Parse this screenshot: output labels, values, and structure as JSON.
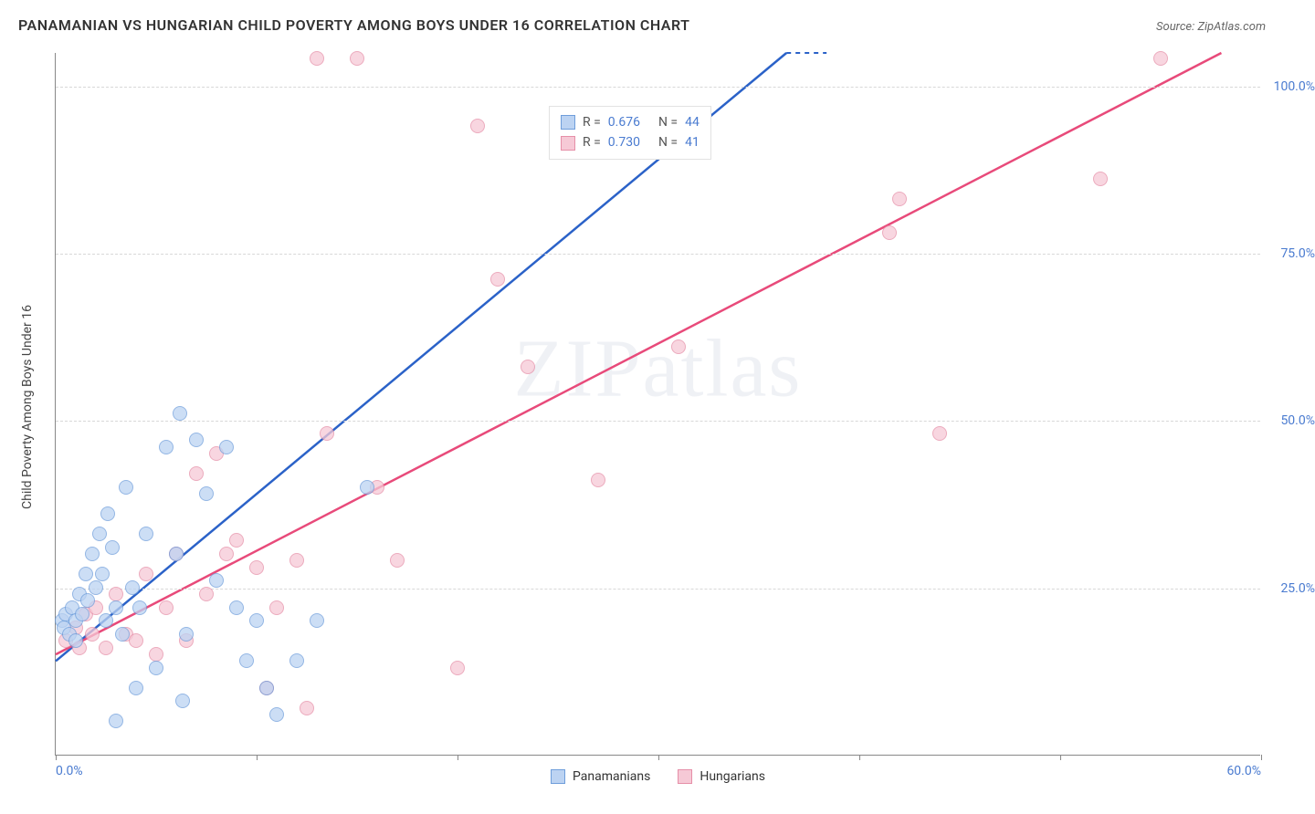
{
  "header": {
    "title": "PANAMANIAN VS HUNGARIAN CHILD POVERTY AMONG BOYS UNDER 16 CORRELATION CHART",
    "source_label": "Source: ",
    "source_name": "ZipAtlas.com"
  },
  "watermark": "ZIPatlas",
  "ylabel": "Child Poverty Among Boys Under 16",
  "chart": {
    "type": "scatter",
    "xlim": [
      0,
      60
    ],
    "ylim": [
      0,
      105
    ],
    "x_range_labels": [
      {
        "x": 0,
        "text": "0.0%",
        "align": "left"
      },
      {
        "x": 60,
        "text": "60.0%",
        "align": "right"
      }
    ],
    "x_tick_marks": [
      0,
      10,
      20,
      30,
      40,
      50,
      60
    ],
    "y_gridlines": [
      25,
      50,
      75,
      100
    ],
    "y_tick_labels": [
      "25.0%",
      "50.0%",
      "75.0%",
      "100.0%"
    ],
    "background_color": "#ffffff",
    "grid_color": "#d8d8d8"
  },
  "series": {
    "panamanians": {
      "label": "Panamanians",
      "fill": "#bcd3f2",
      "stroke": "#6f9edb",
      "line_color": "#2b62c8",
      "R": "0.676",
      "N": "44",
      "trend": {
        "intercept": 14,
        "slope": 2.5
      },
      "points": [
        [
          0.3,
          20
        ],
        [
          0.4,
          19
        ],
        [
          0.5,
          21
        ],
        [
          0.7,
          18
        ],
        [
          0.8,
          22
        ],
        [
          1.0,
          20
        ],
        [
          1.0,
          17
        ],
        [
          1.2,
          24
        ],
        [
          1.3,
          21
        ],
        [
          1.5,
          27
        ],
        [
          1.6,
          23
        ],
        [
          1.8,
          30
        ],
        [
          2.0,
          25
        ],
        [
          2.2,
          33
        ],
        [
          2.3,
          27
        ],
        [
          2.5,
          20
        ],
        [
          2.6,
          36
        ],
        [
          2.8,
          31
        ],
        [
          3.0,
          22
        ],
        [
          3.0,
          5
        ],
        [
          3.3,
          18
        ],
        [
          3.5,
          40
        ],
        [
          3.8,
          25
        ],
        [
          4.0,
          10
        ],
        [
          4.2,
          22
        ],
        [
          4.5,
          33
        ],
        [
          5.0,
          13
        ],
        [
          5.5,
          46
        ],
        [
          6.0,
          30
        ],
        [
          6.2,
          51
        ],
        [
          6.5,
          18
        ],
        [
          7.0,
          47
        ],
        [
          7.5,
          39
        ],
        [
          8.0,
          26
        ],
        [
          8.5,
          46
        ],
        [
          9.0,
          22
        ],
        [
          9.5,
          14
        ],
        [
          10.0,
          20
        ],
        [
          10.5,
          10
        ],
        [
          11.0,
          6
        ],
        [
          12.0,
          14
        ],
        [
          13.0,
          20
        ],
        [
          15.5,
          40
        ],
        [
          6.3,
          8
        ]
      ]
    },
    "hungarians": {
      "label": "Hungarians",
      "fill": "#f6c9d6",
      "stroke": "#e68fa8",
      "line_color": "#e84a7a",
      "R": "0.730",
      "N": "41",
      "trend": {
        "intercept": 15,
        "slope": 1.55
      },
      "points": [
        [
          0.5,
          17
        ],
        [
          1.0,
          19
        ],
        [
          1.2,
          16
        ],
        [
          1.5,
          21
        ],
        [
          1.8,
          18
        ],
        [
          2.0,
          22
        ],
        [
          2.5,
          16
        ],
        [
          3.0,
          24
        ],
        [
          3.5,
          18
        ],
        [
          4.0,
          17
        ],
        [
          4.5,
          27
        ],
        [
          5.0,
          15
        ],
        [
          5.5,
          22
        ],
        [
          6.0,
          30
        ],
        [
          6.5,
          17
        ],
        [
          7.0,
          42
        ],
        [
          7.5,
          24
        ],
        [
          8.0,
          45
        ],
        [
          8.5,
          30
        ],
        [
          9.0,
          32
        ],
        [
          10.0,
          28
        ],
        [
          10.5,
          10
        ],
        [
          11.0,
          22
        ],
        [
          12.0,
          29
        ],
        [
          13.0,
          104
        ],
        [
          13.5,
          48
        ],
        [
          15.0,
          104
        ],
        [
          16.0,
          40
        ],
        [
          17.0,
          29
        ],
        [
          20.0,
          13
        ],
        [
          21.0,
          94
        ],
        [
          22.0,
          71
        ],
        [
          23.5,
          58
        ],
        [
          27.0,
          41
        ],
        [
          31.0,
          61
        ],
        [
          41.5,
          78
        ],
        [
          42.0,
          83
        ],
        [
          44.0,
          48
        ],
        [
          52.0,
          86
        ],
        [
          55.0,
          104
        ],
        [
          12.5,
          7
        ]
      ]
    }
  },
  "legend_labels": {
    "R": "R  =",
    "N": "N  ="
  }
}
